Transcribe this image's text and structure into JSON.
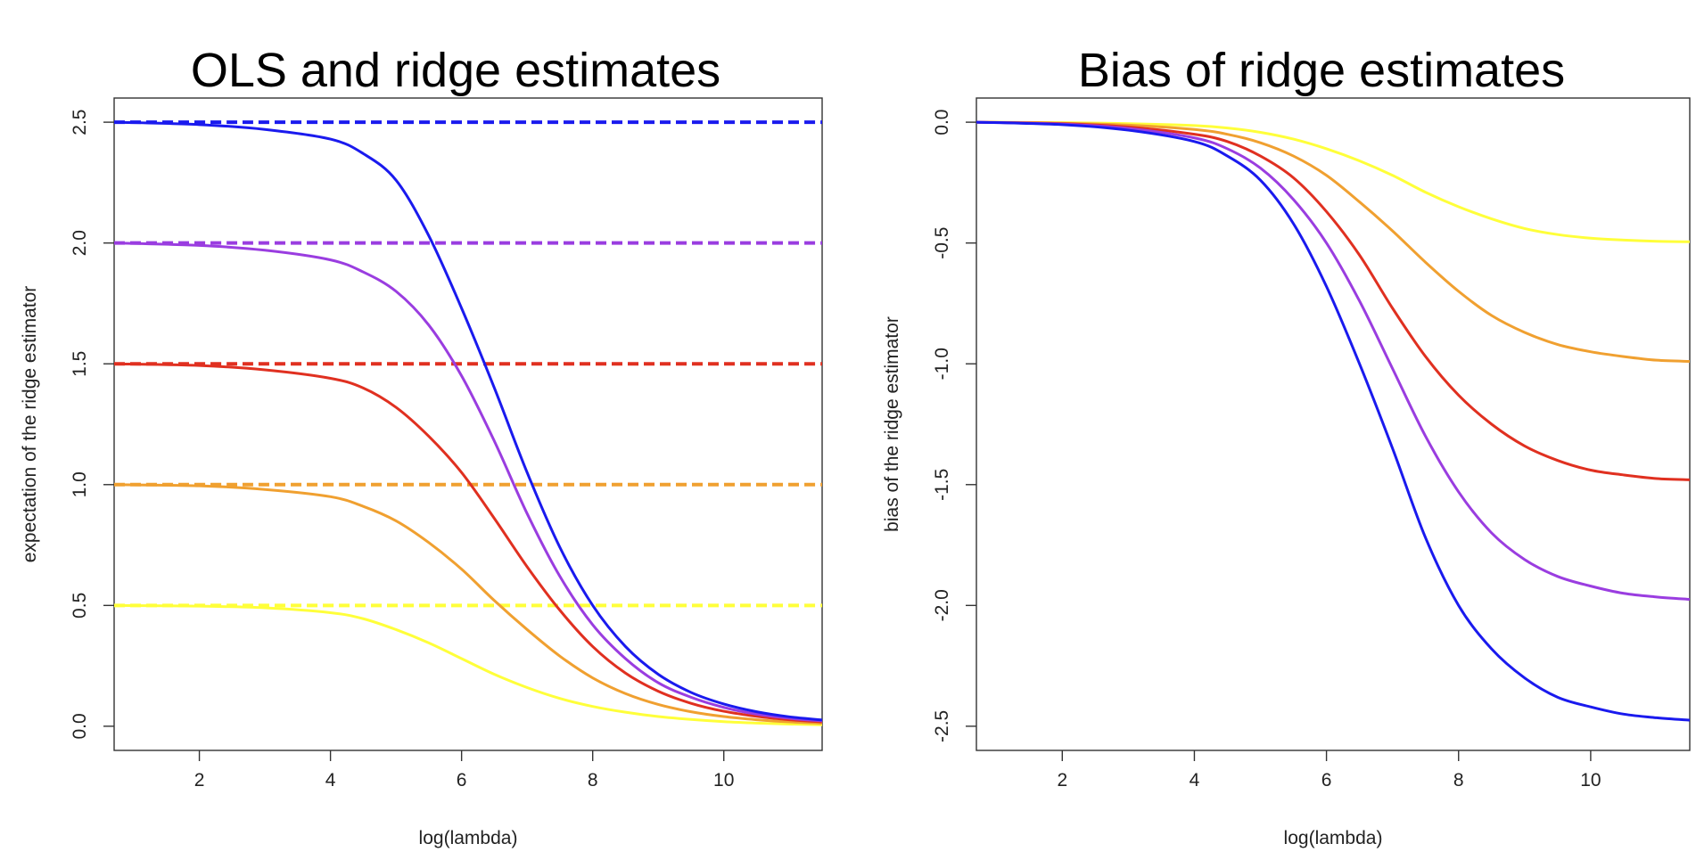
{
  "chart_data": [
    {
      "type": "line",
      "title": "OLS and ridge estimates",
      "xlabel": "log(lambda)",
      "ylabel": "expectation of the ridge estimator",
      "xlim": [
        0.7,
        11.5
      ],
      "ylim": [
        -0.1,
        2.6
      ],
      "xticks": [
        "2",
        "4",
        "6",
        "8",
        "10"
      ],
      "yticks": [
        "0.0",
        "0.5",
        "1.0",
        "1.5",
        "2.0",
        "2.5"
      ],
      "grid": false,
      "legend": "none",
      "x": [
        0.7,
        2,
        3,
        4,
        4.5,
        5,
        5.5,
        6,
        6.5,
        7,
        7.5,
        8,
        8.5,
        9,
        9.5,
        10,
        10.5,
        11,
        11.5
      ],
      "series": [
        {
          "color": "#ffff3a",
          "style": "dashed",
          "values": [
            0.5,
            0.5,
            0.5,
            0.5,
            0.5,
            0.5,
            0.5,
            0.5,
            0.5,
            0.5,
            0.5,
            0.5,
            0.5,
            0.5,
            0.5,
            0.5,
            0.5,
            0.5,
            0.5
          ]
        },
        {
          "color": "#f0a030",
          "style": "dashed",
          "values": [
            1.0,
            1.0,
            1.0,
            1.0,
            1.0,
            1.0,
            1.0,
            1.0,
            1.0,
            1.0,
            1.0,
            1.0,
            1.0,
            1.0,
            1.0,
            1.0,
            1.0,
            1.0,
            1.0
          ]
        },
        {
          "color": "#e03020",
          "style": "dashed",
          "values": [
            1.5,
            1.5,
            1.5,
            1.5,
            1.5,
            1.5,
            1.5,
            1.5,
            1.5,
            1.5,
            1.5,
            1.5,
            1.5,
            1.5,
            1.5,
            1.5,
            1.5,
            1.5,
            1.5
          ]
        },
        {
          "color": "#9a3de0",
          "style": "dashed",
          "values": [
            2.0,
            2.0,
            2.0,
            2.0,
            2.0,
            2.0,
            2.0,
            2.0,
            2.0,
            2.0,
            2.0,
            2.0,
            2.0,
            2.0,
            2.0,
            2.0,
            2.0,
            2.0,
            2.0
          ]
        },
        {
          "color": "#1a1aee",
          "style": "dashed",
          "values": [
            2.5,
            2.5,
            2.5,
            2.5,
            2.5,
            2.5,
            2.5,
            2.5,
            2.5,
            2.5,
            2.5,
            2.5,
            2.5,
            2.5,
            2.5,
            2.5,
            2.5,
            2.5,
            2.5
          ]
        },
        {
          "color": "#ffff3a",
          "style": "solid",
          "values": [
            0.5,
            0.497,
            0.49,
            0.47,
            0.445,
            0.4,
            0.345,
            0.28,
            0.215,
            0.16,
            0.115,
            0.082,
            0.058,
            0.04,
            0.028,
            0.019,
            0.013,
            0.009,
            0.006
          ]
        },
        {
          "color": "#f0a030",
          "style": "solid",
          "values": [
            1.0,
            0.995,
            0.98,
            0.95,
            0.91,
            0.85,
            0.76,
            0.65,
            0.52,
            0.4,
            0.29,
            0.2,
            0.135,
            0.09,
            0.06,
            0.04,
            0.027,
            0.018,
            0.012
          ]
        },
        {
          "color": "#e03020",
          "style": "solid",
          "values": [
            1.5,
            1.493,
            1.475,
            1.44,
            1.4,
            1.32,
            1.2,
            1.05,
            0.86,
            0.66,
            0.48,
            0.33,
            0.22,
            0.145,
            0.095,
            0.062,
            0.041,
            0.027,
            0.018
          ]
        },
        {
          "color": "#9a3de0",
          "style": "solid",
          "values": [
            2.0,
            1.99,
            1.97,
            1.93,
            1.88,
            1.8,
            1.66,
            1.45,
            1.18,
            0.88,
            0.62,
            0.42,
            0.28,
            0.18,
            0.12,
            0.078,
            0.05,
            0.033,
            0.022
          ]
        },
        {
          "color": "#1a1aee",
          "style": "solid",
          "values": [
            2.5,
            2.49,
            2.47,
            2.43,
            2.37,
            2.26,
            2.03,
            1.73,
            1.4,
            1.05,
            0.74,
            0.5,
            0.33,
            0.215,
            0.14,
            0.092,
            0.06,
            0.039,
            0.026
          ]
        }
      ]
    },
    {
      "type": "line",
      "title": "Bias of ridge estimates",
      "xlabel": "log(lambda)",
      "ylabel": "bias of the ridge estimator",
      "xlim": [
        0.7,
        11.5
      ],
      "ylim": [
        -2.6,
        0.1
      ],
      "xticks": [
        "2",
        "4",
        "6",
        "8",
        "10"
      ],
      "yticks": [
        "0.0",
        "-0.5",
        "-1.0",
        "-1.5",
        "-2.0",
        "-2.5"
      ],
      "grid": false,
      "legend": "none",
      "x": [
        0.7,
        2,
        3,
        4,
        4.5,
        5,
        5.5,
        6,
        6.5,
        7,
        7.5,
        8,
        8.5,
        9,
        9.5,
        10,
        10.5,
        11,
        11.5
      ],
      "series": [
        {
          "color": "#ffff3a",
          "style": "solid",
          "values": [
            0.0,
            -0.002,
            -0.006,
            -0.014,
            -0.024,
            -0.042,
            -0.07,
            -0.11,
            -0.16,
            -0.22,
            -0.29,
            -0.35,
            -0.4,
            -0.44,
            -0.465,
            -0.48,
            -0.488,
            -0.493,
            -0.495
          ]
        },
        {
          "color": "#f0a030",
          "style": "solid",
          "values": [
            0.0,
            -0.004,
            -0.012,
            -0.03,
            -0.05,
            -0.085,
            -0.14,
            -0.22,
            -0.33,
            -0.45,
            -0.58,
            -0.7,
            -0.8,
            -0.87,
            -0.92,
            -0.95,
            -0.97,
            -0.985,
            -0.99
          ]
        },
        {
          "color": "#e03020",
          "style": "solid",
          "values": [
            0.0,
            -0.006,
            -0.02,
            -0.05,
            -0.08,
            -0.14,
            -0.23,
            -0.37,
            -0.55,
            -0.77,
            -0.97,
            -1.13,
            -1.25,
            -1.34,
            -1.4,
            -1.44,
            -1.46,
            -1.475,
            -1.48
          ]
        },
        {
          "color": "#9a3de0",
          "style": "solid",
          "values": [
            0.0,
            -0.008,
            -0.026,
            -0.065,
            -0.11,
            -0.19,
            -0.32,
            -0.5,
            -0.74,
            -1.02,
            -1.3,
            -1.53,
            -1.7,
            -1.81,
            -1.88,
            -1.92,
            -1.95,
            -1.965,
            -1.975
          ]
        },
        {
          "color": "#1a1aee",
          "style": "solid",
          "values": [
            0.0,
            -0.01,
            -0.033,
            -0.08,
            -0.14,
            -0.24,
            -0.42,
            -0.68,
            -1.0,
            -1.35,
            -1.72,
            -2.0,
            -2.18,
            -2.3,
            -2.38,
            -2.42,
            -2.45,
            -2.465,
            -2.475
          ]
        }
      ]
    }
  ]
}
